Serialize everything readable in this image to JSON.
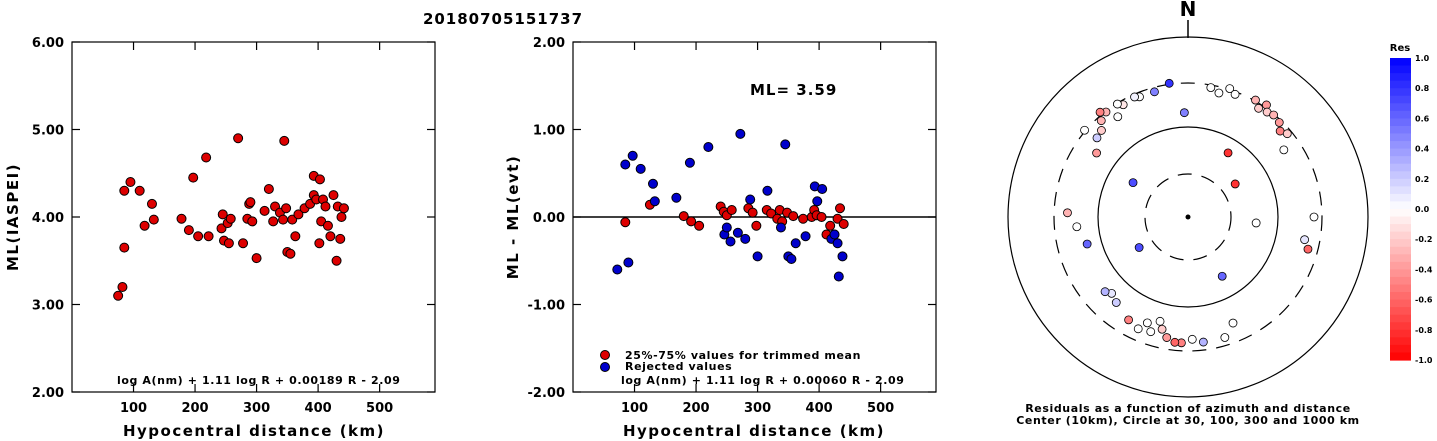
{
  "title": "20180705151737",
  "chart_data": [
    {
      "type": "scatter",
      "title": "",
      "xlabel": "Hypocentral distance (km)",
      "ylabel": "ML(IASPEI)",
      "xlim": [
        0,
        590
      ],
      "ylim": [
        2.0,
        6.0
      ],
      "x_ticks": [
        "100",
        "200",
        "300",
        "400",
        "500"
      ],
      "y_ticks": [
        "2.00",
        "3.00",
        "4.00",
        "5.00",
        "6.00"
      ],
      "annotation": "log A(nm) + 1.11 log R + 0.00189 R - 2.09",
      "marker_color": "#dd0000",
      "series": [
        {
          "points": [
            [
              75,
              3.1
            ],
            [
              82,
              3.2
            ],
            [
              85,
              3.65
            ],
            [
              85,
              4.3
            ],
            [
              95,
              4.4
            ],
            [
              110,
              4.3
            ],
            [
              118,
              3.9
            ],
            [
              130,
              4.15
            ],
            [
              133,
              3.97
            ],
            [
              178,
              3.98
            ],
            [
              190,
              3.85
            ],
            [
              197,
              4.45
            ],
            [
              205,
              3.78
            ],
            [
              218,
              4.68
            ],
            [
              222,
              3.78
            ],
            [
              243,
              3.87
            ],
            [
              245,
              4.03
            ],
            [
              247,
              3.73
            ],
            [
              253,
              3.93
            ],
            [
              255,
              3.7
            ],
            [
              258,
              3.98
            ],
            [
              270,
              4.9
            ],
            [
              278,
              3.7
            ],
            [
              285,
              3.98
            ],
            [
              288,
              4.15
            ],
            [
              290,
              4.17
            ],
            [
              293,
              3.95
            ],
            [
              300,
              3.53
            ],
            [
              313,
              4.07
            ],
            [
              320,
              4.32
            ],
            [
              327,
              3.95
            ],
            [
              330,
              4.12
            ],
            [
              338,
              4.05
            ],
            [
              343,
              3.97
            ],
            [
              345,
              4.87
            ],
            [
              348,
              4.1
            ],
            [
              350,
              3.6
            ],
            [
              355,
              3.58
            ],
            [
              358,
              3.97
            ],
            [
              363,
              3.78
            ],
            [
              368,
              4.03
            ],
            [
              378,
              4.1
            ],
            [
              387,
              4.15
            ],
            [
              393,
              4.47
            ],
            [
              393,
              4.25
            ],
            [
              397,
              4.2
            ],
            [
              402,
              3.7
            ],
            [
              403,
              4.43
            ],
            [
              405,
              3.95
            ],
            [
              408,
              4.2
            ],
            [
              412,
              4.12
            ],
            [
              416,
              3.9
            ],
            [
              420,
              3.78
            ],
            [
              425,
              4.25
            ],
            [
              430,
              3.5
            ],
            [
              432,
              4.12
            ],
            [
              436,
              3.75
            ],
            [
              438,
              4.0
            ],
            [
              442,
              4.1
            ]
          ]
        }
      ]
    },
    {
      "type": "scatter",
      "title": "",
      "xlabel": "Hypocentral distance (km)",
      "ylabel": "ML - ML(evt)",
      "xlim": [
        0,
        590
      ],
      "ylim": [
        -2.0,
        2.0
      ],
      "x_ticks": [
        "100",
        "200",
        "300",
        "400",
        "500"
      ],
      "y_ticks": [
        "-2.00",
        "-1.00",
        "0.00",
        "1.00",
        "2.00"
      ],
      "ml_label": "ML= 3.59",
      "legend": [
        "25%-75% values for trimmed mean",
        "Rejected values"
      ],
      "annotation": "log A(nm) + 1.11 log R + 0.00060 R - 2.09",
      "colors": {
        "used": "#dd0000",
        "rejected": "#0000cc"
      },
      "series": [
        {
          "name": "25%-75% values for trimmed mean",
          "points": [
            [
              85,
              -0.06
            ],
            [
              125,
              0.14
            ],
            [
              180,
              0.01
            ],
            [
              192,
              -0.05
            ],
            [
              205,
              -0.1
            ],
            [
              240,
              0.12
            ],
            [
              245,
              0.06
            ],
            [
              250,
              0.02
            ],
            [
              258,
              0.08
            ],
            [
              285,
              0.1
            ],
            [
              292,
              0.05
            ],
            [
              298,
              -0.1
            ],
            [
              315,
              0.08
            ],
            [
              322,
              0.04
            ],
            [
              332,
              -0.02
            ],
            [
              336,
              0.08
            ],
            [
              340,
              -0.05
            ],
            [
              348,
              0.05
            ],
            [
              358,
              0.01
            ],
            [
              374,
              -0.02
            ],
            [
              388,
              0.0
            ],
            [
              392,
              0.08
            ],
            [
              396,
              0.02
            ],
            [
              404,
              0.0
            ],
            [
              412,
              -0.2
            ],
            [
              418,
              -0.1
            ],
            [
              425,
              -0.2
            ],
            [
              430,
              -0.02
            ],
            [
              434,
              0.1
            ],
            [
              440,
              -0.08
            ]
          ]
        },
        {
          "name": "Rejected values",
          "points": [
            [
              72,
              -0.6
            ],
            [
              85,
              0.6
            ],
            [
              90,
              -0.52
            ],
            [
              97,
              0.7
            ],
            [
              110,
              0.55
            ],
            [
              130,
              0.38
            ],
            [
              133,
              0.18
            ],
            [
              168,
              0.22
            ],
            [
              190,
              0.62
            ],
            [
              220,
              0.8
            ],
            [
              246,
              -0.2
            ],
            [
              250,
              -0.12
            ],
            [
              256,
              -0.28
            ],
            [
              268,
              -0.18
            ],
            [
              272,
              0.95
            ],
            [
              280,
              -0.25
            ],
            [
              288,
              0.2
            ],
            [
              300,
              -0.45
            ],
            [
              316,
              0.3
            ],
            [
              338,
              -0.12
            ],
            [
              345,
              0.83
            ],
            [
              350,
              -0.45
            ],
            [
              355,
              -0.48
            ],
            [
              362,
              -0.3
            ],
            [
              378,
              -0.22
            ],
            [
              393,
              0.35
            ],
            [
              397,
              0.18
            ],
            [
              405,
              0.32
            ],
            [
              420,
              -0.25
            ],
            [
              425,
              -0.2
            ],
            [
              430,
              -0.3
            ],
            [
              432,
              -0.68
            ],
            [
              438,
              -0.45
            ]
          ]
        }
      ]
    },
    {
      "type": "polar-scatter",
      "north_label": "N",
      "caption_line1": "Residuals as a function of azimuth and distance",
      "caption_line2": "Center (10km), Circle at 30, 100, 300 and 1000 km",
      "colorbar_title": "Res",
      "colorbar_ticks": [
        "1.0",
        "0.8",
        "0.6",
        "0.4",
        "0.2",
        "0.0",
        "-0.2",
        "-0.4",
        "-0.6",
        "-0.8",
        "-1.0"
      ],
      "colorbar_range": [
        -1.0,
        1.0
      ],
      "negative_color": "#ff0000",
      "positive_color": "#0000ff",
      "stations": [
        {
          "az": 345,
          "r": 0.72,
          "res": 0.5
        },
        {
          "az": 338,
          "r": 0.72,
          "res": 0.0
        },
        {
          "az": 336,
          "r": 0.73,
          "res": 0.05
        },
        {
          "az": 330,
          "r": 0.72,
          "res": -0.1
        },
        {
          "az": 328,
          "r": 0.74,
          "res": 0.0
        },
        {
          "az": 325,
          "r": 0.68,
          "res": 0.0
        },
        {
          "az": 322,
          "r": 0.74,
          "res": -0.3
        },
        {
          "az": 320,
          "r": 0.76,
          "res": -0.5
        },
        {
          "az": 318,
          "r": 0.72,
          "res": -0.3
        },
        {
          "az": 315,
          "r": 0.68,
          "res": -0.2
        },
        {
          "az": 311,
          "r": 0.67,
          "res": 0.2
        },
        {
          "az": 310,
          "r": 0.75,
          "res": 0.0
        },
        {
          "az": 305,
          "r": 0.62,
          "res": -0.4
        },
        {
          "az": 352,
          "r": 0.75,
          "res": 0.8
        },
        {
          "az": 358,
          "r": 0.58,
          "res": 0.5
        },
        {
          "az": 10,
          "r": 0.73,
          "res": 0.0
        },
        {
          "az": 14,
          "r": 0.71,
          "res": 0.0
        },
        {
          "az": 18,
          "r": 0.75,
          "res": 0.0
        },
        {
          "az": 21,
          "r": 0.73,
          "res": 0.0
        },
        {
          "az": 30,
          "r": 0.75,
          "res": -0.3
        },
        {
          "az": 33,
          "r": 0.72,
          "res": -0.2
        },
        {
          "az": 35,
          "r": 0.76,
          "res": -0.4
        },
        {
          "az": 37,
          "r": 0.73,
          "res": -0.2
        },
        {
          "az": 40,
          "r": 0.74,
          "res": -0.3
        },
        {
          "az": 44,
          "r": 0.73,
          "res": -0.4
        },
        {
          "az": 47,
          "r": 0.7,
          "res": -0.5
        },
        {
          "az": 50,
          "r": 0.72,
          "res": -0.2
        },
        {
          "az": 55,
          "r": 0.65,
          "res": 0.0
        },
        {
          "az": 32,
          "r": 0.42,
          "res": -0.8
        },
        {
          "az": 55,
          "r": 0.32,
          "res": -0.8
        },
        {
          "az": 95,
          "r": 0.38,
          "res": 0.0
        },
        {
          "az": 90,
          "r": 0.7,
          "res": 0.0
        },
        {
          "az": 101,
          "r": 0.66,
          "res": 0.1
        },
        {
          "az": 105,
          "r": 0.69,
          "res": -0.6
        },
        {
          "az": 150,
          "r": 0.38,
          "res": 0.6
        },
        {
          "az": 157,
          "r": 0.64,
          "res": 0.0
        },
        {
          "az": 163,
          "r": 0.7,
          "res": 0.0
        },
        {
          "az": 173,
          "r": 0.7,
          "res": 0.3
        },
        {
          "az": 178,
          "r": 0.68,
          "res": 0.0
        },
        {
          "az": 183,
          "r": 0.7,
          "res": -0.5
        },
        {
          "az": 186,
          "r": 0.7,
          "res": -0.6
        },
        {
          "az": 190,
          "r": 0.68,
          "res": -0.4
        },
        {
          "az": 193,
          "r": 0.64,
          "res": -0.2
        },
        {
          "az": 195,
          "r": 0.6,
          "res": 0.0
        },
        {
          "az": 198,
          "r": 0.67,
          "res": 0.0
        },
        {
          "az": 201,
          "r": 0.63,
          "res": 0.0
        },
        {
          "az": 204,
          "r": 0.68,
          "res": 0.0
        },
        {
          "az": 210,
          "r": 0.66,
          "res": -0.5
        },
        {
          "az": 220,
          "r": 0.62,
          "res": 0.2
        },
        {
          "az": 225,
          "r": 0.6,
          "res": 0.1
        },
        {
          "az": 228,
          "r": 0.62,
          "res": 0.3
        },
        {
          "az": 238,
          "r": 0.32,
          "res": 0.7
        },
        {
          "az": 255,
          "r": 0.58,
          "res": 0.6
        },
        {
          "az": 265,
          "r": 0.62,
          "res": 0.0
        },
        {
          "az": 272,
          "r": 0.67,
          "res": -0.3
        },
        {
          "az": 302,
          "r": 0.36,
          "res": 0.7
        }
      ]
    }
  ]
}
